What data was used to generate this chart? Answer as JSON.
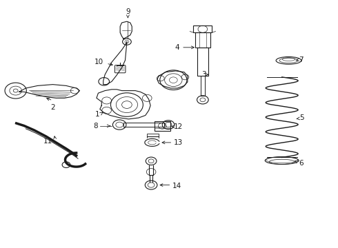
{
  "background_color": "#ffffff",
  "line_color": "#1a1a1a",
  "label_color": "#000000",
  "label_fontsize": 7.5,
  "parts": {
    "label_positions": {
      "1": [
        0.365,
        0.535,
        0.335,
        0.535
      ],
      "2": [
        0.155,
        0.605,
        0.155,
        0.575
      ],
      "3": [
        0.61,
        0.43,
        0.64,
        0.43
      ],
      "4": [
        0.53,
        0.74,
        0.56,
        0.74
      ],
      "5": [
        0.87,
        0.43,
        0.84,
        0.43
      ],
      "6": [
        0.87,
        0.355,
        0.84,
        0.375
      ],
      "7": [
        0.87,
        0.76,
        0.84,
        0.76
      ],
      "8": [
        0.29,
        0.49,
        0.32,
        0.49
      ],
      "9": [
        0.38,
        0.93,
        0.38,
        0.9
      ],
      "10": [
        0.31,
        0.75,
        0.34,
        0.72
      ],
      "11": [
        0.175,
        0.43,
        0.21,
        0.46
      ],
      "12": [
        0.54,
        0.485,
        0.51,
        0.485
      ],
      "13": [
        0.54,
        0.415,
        0.51,
        0.43
      ],
      "14": [
        0.51,
        0.245,
        0.48,
        0.27
      ]
    }
  }
}
